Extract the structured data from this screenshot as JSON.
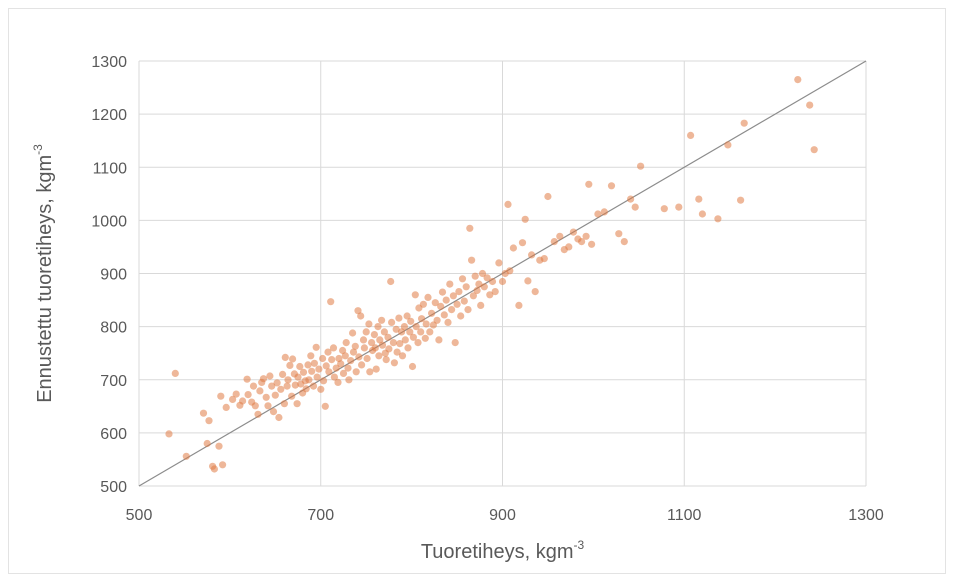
{
  "chart_data": {
    "type": "scatter",
    "title": "",
    "xlabel": "Tuoretiheys, kgm",
    "xlabel_sup": "-3",
    "ylabel": "Ennustettu tuoretiheys, kgm",
    "ylabel_sup": "-3",
    "xlim": [
      500,
      1300
    ],
    "ylim": [
      500,
      1300
    ],
    "x_ticks": [
      500,
      700,
      900,
      1100,
      1300
    ],
    "y_ticks": [
      500,
      600,
      700,
      800,
      900,
      1000,
      1100,
      1200,
      1300
    ],
    "grid": true,
    "legend": "none",
    "point_color": "#E07B45",
    "reference_line": {
      "label": "",
      "from": [
        500,
        500
      ],
      "to": [
        1300,
        1300
      ],
      "color": "#8c8c8c"
    },
    "series": [
      {
        "points": [
          [
            533,
            598
          ],
          [
            540,
            712
          ],
          [
            552,
            556
          ],
          [
            571,
            637
          ],
          [
            575,
            580
          ],
          [
            577,
            623
          ],
          [
            581,
            537
          ],
          [
            583,
            532
          ],
          [
            588,
            575
          ],
          [
            590,
            669
          ],
          [
            592,
            540
          ],
          [
            596,
            648
          ],
          [
            603,
            663
          ],
          [
            607,
            673
          ],
          [
            611,
            652
          ],
          [
            614,
            660
          ],
          [
            619,
            701
          ],
          [
            620,
            672
          ],
          [
            624,
            658
          ],
          [
            626,
            688
          ],
          [
            628,
            651
          ],
          [
            631,
            635
          ],
          [
            633,
            679
          ],
          [
            635,
            695
          ],
          [
            637,
            702
          ],
          [
            640,
            667
          ],
          [
            642,
            651
          ],
          [
            644,
            707
          ],
          [
            646,
            688
          ],
          [
            648,
            640
          ],
          [
            650,
            671
          ],
          [
            652,
            694
          ],
          [
            654,
            629
          ],
          [
            656,
            682
          ],
          [
            658,
            710
          ],
          [
            660,
            655
          ],
          [
            661,
            742
          ],
          [
            663,
            688
          ],
          [
            664,
            700
          ],
          [
            666,
            727
          ],
          [
            668,
            669
          ],
          [
            669,
            739
          ],
          [
            671,
            711
          ],
          [
            672,
            690
          ],
          [
            674,
            655
          ],
          [
            675,
            705
          ],
          [
            677,
            725
          ],
          [
            678,
            692
          ],
          [
            680,
            675
          ],
          [
            681,
            714
          ],
          [
            683,
            698
          ],
          [
            684,
            683
          ],
          [
            686,
            728
          ],
          [
            687,
            700
          ],
          [
            689,
            745
          ],
          [
            690,
            716
          ],
          [
            692,
            688
          ],
          [
            693,
            731
          ],
          [
            695,
            761
          ],
          [
            696,
            705
          ],
          [
            698,
            720
          ],
          [
            700,
            682
          ],
          [
            702,
            740
          ],
          [
            703,
            698
          ],
          [
            705,
            650
          ],
          [
            706,
            726
          ],
          [
            708,
            752
          ],
          [
            709,
            715
          ],
          [
            711,
            847
          ],
          [
            712,
            738
          ],
          [
            714,
            760
          ],
          [
            715,
            705
          ],
          [
            717,
            722
          ],
          [
            719,
            695
          ],
          [
            720,
            740
          ],
          [
            722,
            730
          ],
          [
            724,
            755
          ],
          [
            725,
            712
          ],
          [
            727,
            745
          ],
          [
            728,
            770
          ],
          [
            730,
            722
          ],
          [
            731,
            700
          ],
          [
            733,
            736
          ],
          [
            735,
            788
          ],
          [
            736,
            752
          ],
          [
            738,
            763
          ],
          [
            739,
            715
          ],
          [
            741,
            830
          ],
          [
            742,
            743
          ],
          [
            744,
            820
          ],
          [
            745,
            728
          ],
          [
            747,
            775
          ],
          [
            748,
            760
          ],
          [
            750,
            790
          ],
          [
            751,
            740
          ],
          [
            753,
            805
          ],
          [
            754,
            715
          ],
          [
            756,
            770
          ],
          [
            757,
            755
          ],
          [
            759,
            785
          ],
          [
            760,
            760
          ],
          [
            761,
            720
          ],
          [
            763,
            800
          ],
          [
            764,
            745
          ],
          [
            765,
            775
          ],
          [
            767,
            812
          ],
          [
            768,
            765
          ],
          [
            770,
            790
          ],
          [
            771,
            750
          ],
          [
            772,
            738
          ],
          [
            774,
            780
          ],
          [
            775,
            758
          ],
          [
            777,
            885
          ],
          [
            778,
            808
          ],
          [
            780,
            770
          ],
          [
            781,
            732
          ],
          [
            783,
            795
          ],
          [
            784,
            752
          ],
          [
            786,
            816
          ],
          [
            787,
            768
          ],
          [
            789,
            790
          ],
          [
            790,
            745
          ],
          [
            792,
            800
          ],
          [
            793,
            775
          ],
          [
            795,
            820
          ],
          [
            796,
            760
          ],
          [
            798,
            790
          ],
          [
            799,
            810
          ],
          [
            801,
            725
          ],
          [
            802,
            780
          ],
          [
            804,
            860
          ],
          [
            805,
            800
          ],
          [
            807,
            770
          ],
          [
            808,
            835
          ],
          [
            810,
            790
          ],
          [
            811,
            815
          ],
          [
            813,
            842
          ],
          [
            815,
            778
          ],
          [
            816,
            805
          ],
          [
            818,
            855
          ],
          [
            820,
            790
          ],
          [
            822,
            825
          ],
          [
            824,
            803
          ],
          [
            826,
            845
          ],
          [
            828,
            812
          ],
          [
            830,
            775
          ],
          [
            832,
            838
          ],
          [
            834,
            865
          ],
          [
            836,
            822
          ],
          [
            838,
            850
          ],
          [
            840,
            808
          ],
          [
            842,
            880
          ],
          [
            844,
            832
          ],
          [
            846,
            858
          ],
          [
            848,
            770
          ],
          [
            850,
            842
          ],
          [
            852,
            866
          ],
          [
            854,
            820
          ],
          [
            856,
            890
          ],
          [
            858,
            848
          ],
          [
            860,
            875
          ],
          [
            862,
            832
          ],
          [
            864,
            985
          ],
          [
            866,
            925
          ],
          [
            868,
            858
          ],
          [
            870,
            895
          ],
          [
            872,
            868
          ],
          [
            874,
            880
          ],
          [
            876,
            840
          ],
          [
            878,
            900
          ],
          [
            880,
            875
          ],
          [
            883,
            892
          ],
          [
            886,
            860
          ],
          [
            889,
            885
          ],
          [
            892,
            866
          ],
          [
            896,
            920
          ],
          [
            900,
            885
          ],
          [
            903,
            900
          ],
          [
            906,
            1030
          ],
          [
            908,
            905
          ],
          [
            912,
            948
          ],
          [
            918,
            840
          ],
          [
            922,
            958
          ],
          [
            925,
            1002
          ],
          [
            928,
            886
          ],
          [
            932,
            935
          ],
          [
            936,
            866
          ],
          [
            941,
            925
          ],
          [
            946,
            928
          ],
          [
            950,
            1045
          ],
          [
            957,
            960
          ],
          [
            963,
            970
          ],
          [
            968,
            945
          ],
          [
            973,
            950
          ],
          [
            978,
            978
          ],
          [
            983,
            965
          ],
          [
            987,
            960
          ],
          [
            992,
            970
          ],
          [
            995,
            1068
          ],
          [
            998,
            955
          ],
          [
            1005,
            1012
          ],
          [
            1012,
            1016
          ],
          [
            1020,
            1065
          ],
          [
            1028,
            975
          ],
          [
            1034,
            960
          ],
          [
            1041,
            1040
          ],
          [
            1046,
            1025
          ],
          [
            1052,
            1102
          ],
          [
            1078,
            1022
          ],
          [
            1094,
            1025
          ],
          [
            1107,
            1160
          ],
          [
            1116,
            1040
          ],
          [
            1120,
            1012
          ],
          [
            1137,
            1003
          ],
          [
            1148,
            1142
          ],
          [
            1162,
            1038
          ],
          [
            1166,
            1183
          ],
          [
            1225,
            1265
          ],
          [
            1238,
            1217
          ],
          [
            1243,
            1133
          ]
        ]
      }
    ]
  }
}
